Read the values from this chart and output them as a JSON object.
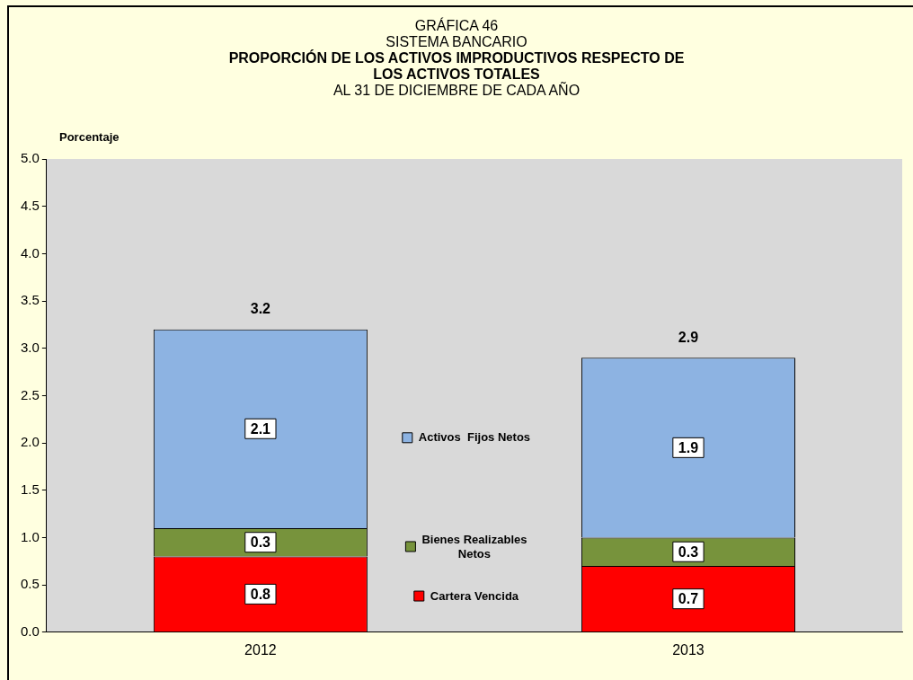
{
  "chart_data": {
    "type": "bar",
    "title": "PROPORCIÓN DE LOS ACTIVOS IMPRODUCTIVOS RESPECTO DE LOS ACTIVOS TOTALES",
    "subtitle": "AL 31 DE DICIEMBRE  DE CADA AÑO",
    "annotations": [
      "GRÁFICA 46",
      "SISTEMA BANCARIO"
    ],
    "ylabel": "Porcentaje",
    "categories": [
      "2012",
      "2013"
    ],
    "series": [
      {
        "name": "Cartera Vencida",
        "color": "#ff0000",
        "values": [
          0.8,
          0.7
        ]
      },
      {
        "name": "Bienes Realizables Netos",
        "color": "#77933c",
        "values": [
          0.3,
          0.3
        ]
      },
      {
        "name": "Activos  Fijos Netos",
        "color": "#8db3e2",
        "values": [
          2.1,
          1.9
        ]
      }
    ],
    "stacked": true,
    "totals": [
      "3.2",
      "2.9"
    ],
    "data_labels": true,
    "ylim": [
      0,
      5
    ],
    "yticks": [
      {
        "value": 0,
        "label": "0.0"
      },
      {
        "value": 0.5,
        "label": "0.5"
      },
      {
        "value": 1,
        "label": "1.0"
      },
      {
        "value": 1.5,
        "label": "1.5"
      },
      {
        "value": 2,
        "label": "2.0"
      },
      {
        "value": 2.5,
        "label": "2.5"
      },
      {
        "value": 3,
        "label": "3.0"
      },
      {
        "value": 3.5,
        "label": "3.5"
      },
      {
        "value": 4,
        "label": "4.0"
      },
      {
        "value": 4.5,
        "label": "4.5"
      },
      {
        "value": 5,
        "label": "5.0"
      }
    ],
    "grid": false,
    "legend": "center"
  }
}
